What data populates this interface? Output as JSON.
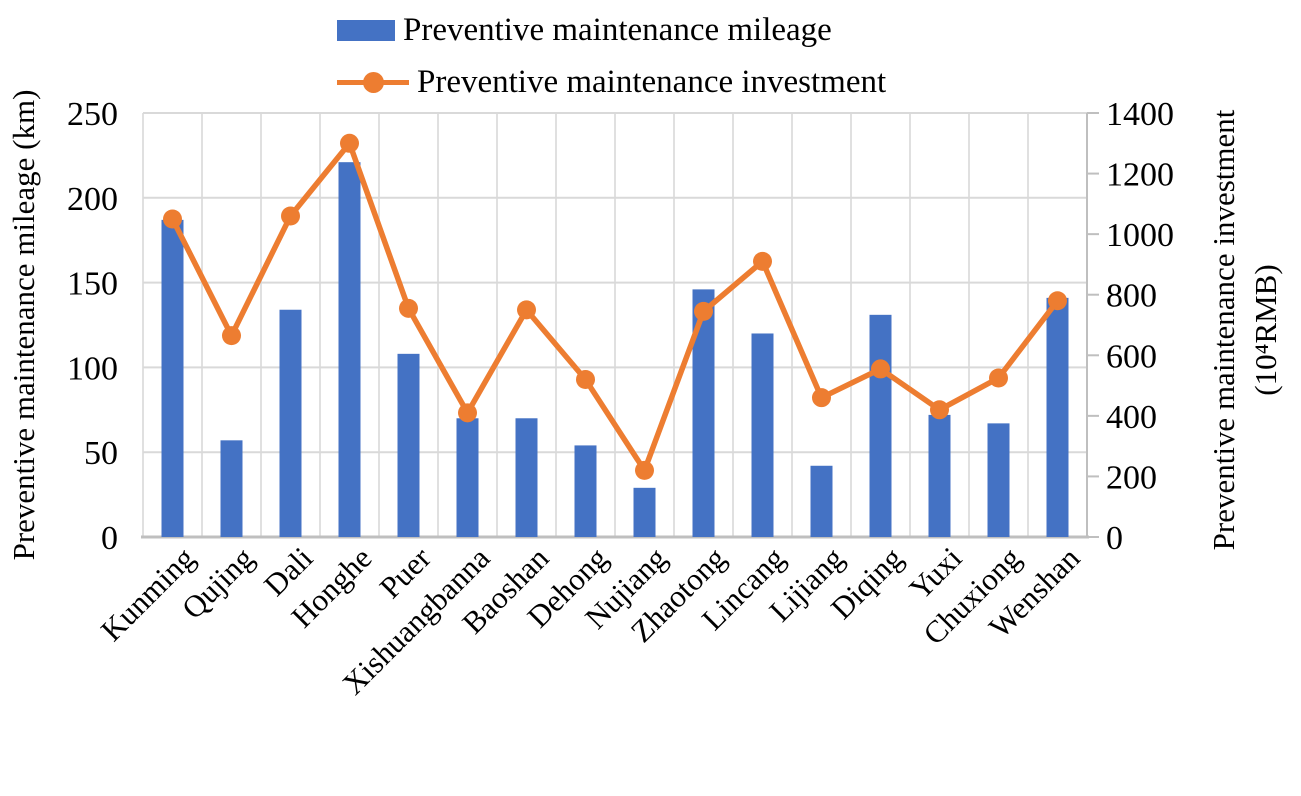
{
  "legend": {
    "mileage_label": "Preventive maintenance mileage",
    "investment_label": "Preventive maintenance investment"
  },
  "axes": {
    "left_title": "Preventive maintenance mileage (km)",
    "right_title_line1": "Preventive maintenance investment",
    "right_title_line2": "(10⁴RMB)"
  },
  "colors": {
    "bar": "#4472C4",
    "line": "#ED7D31",
    "grid": "#D9D9D9",
    "axis": "#BFBFBF",
    "text": "#000000"
  },
  "chart_data": {
    "type": "bar",
    "subtype": "bar+line dual axis",
    "categories": [
      "Kunming",
      "Qujing",
      "Dali",
      "Honghe",
      "Puer",
      "Xishuangbanna",
      "Baoshan",
      "Dehong",
      "Nujiang",
      "Zhaotong",
      "Lincang",
      "Lijiang",
      "Diqing",
      "Yuxi",
      "Chuxiong",
      "Wenshan"
    ],
    "series": [
      {
        "name": "Preventive maintenance mileage",
        "type": "bar",
        "axis": "left",
        "values": [
          187,
          57,
          134,
          221,
          108,
          70,
          70,
          54,
          29,
          146,
          120,
          42,
          131,
          72,
          67,
          141
        ]
      },
      {
        "name": "Preventive maintenance investment",
        "type": "line",
        "axis": "right",
        "values": [
          1050,
          665,
          1060,
          1300,
          755,
          410,
          750,
          520,
          220,
          745,
          910,
          460,
          555,
          420,
          525,
          780
        ]
      }
    ],
    "left_axis": {
      "label": "Preventive maintenance mileage (km)",
      "min": 0,
      "max": 250,
      "step": 50
    },
    "right_axis": {
      "label": "Preventive maintenance investment (10⁴RMB)",
      "min": 0,
      "max": 1400,
      "step": 200
    },
    "grid": true,
    "legend_position": "top-center",
    "x_label_rotation": -45
  }
}
